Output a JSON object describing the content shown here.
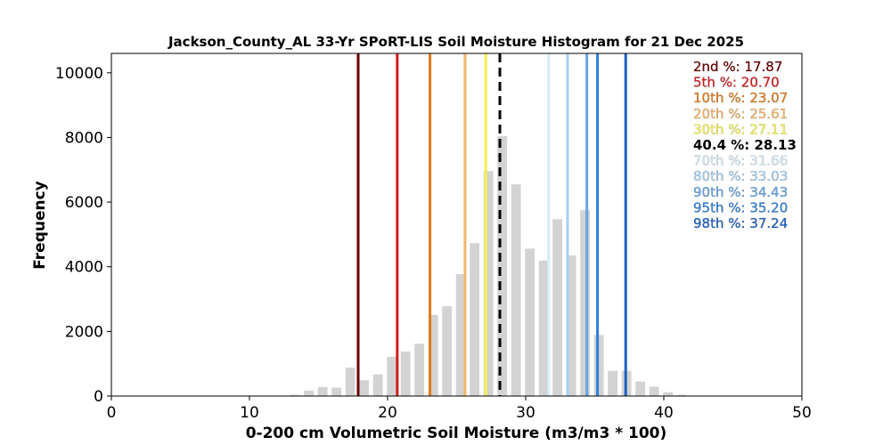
{
  "chart_data": {
    "type": "bar",
    "title": "Jackson_County_AL 33-Yr SPoRT-LIS Soil Moisture Histogram for 21 Dec 2025",
    "xlabel": "0-200 cm Volumetric Soil Moisture (m3/m3 * 100)",
    "ylabel": "Frequency",
    "xlim": [
      0,
      50
    ],
    "ylim": [
      0,
      10600
    ],
    "xticks": [
      "0",
      "10",
      "20",
      "30",
      "40",
      "50"
    ],
    "yticks": [
      "0",
      "2000",
      "4000",
      "6000",
      "8000",
      "10000"
    ],
    "bin_width": 1,
    "bar_color": "#d3d3d3",
    "bins": [
      {
        "x": 13.3,
        "y": 40
      },
      {
        "x": 14.3,
        "y": 170
      },
      {
        "x": 15.3,
        "y": 280
      },
      {
        "x": 16.3,
        "y": 260
      },
      {
        "x": 17.3,
        "y": 880
      },
      {
        "x": 18.3,
        "y": 490
      },
      {
        "x": 19.3,
        "y": 670
      },
      {
        "x": 20.3,
        "y": 1210
      },
      {
        "x": 21.3,
        "y": 1380
      },
      {
        "x": 22.3,
        "y": 1620
      },
      {
        "x": 23.3,
        "y": 2510
      },
      {
        "x": 24.3,
        "y": 2780
      },
      {
        "x": 25.3,
        "y": 3770
      },
      {
        "x": 26.3,
        "y": 4730
      },
      {
        "x": 27.3,
        "y": 6960
      },
      {
        "x": 28.3,
        "y": 8040
      },
      {
        "x": 29.3,
        "y": 6550
      },
      {
        "x": 30.3,
        "y": 4560
      },
      {
        "x": 31.3,
        "y": 4190
      },
      {
        "x": 32.3,
        "y": 5470
      },
      {
        "x": 33.3,
        "y": 4350
      },
      {
        "x": 34.3,
        "y": 5750
      },
      {
        "x": 35.3,
        "y": 1890
      },
      {
        "x": 36.3,
        "y": 780
      },
      {
        "x": 37.3,
        "y": 780
      },
      {
        "x": 38.3,
        "y": 450
      },
      {
        "x": 39.3,
        "y": 290
      },
      {
        "x": 40.3,
        "y": 120
      },
      {
        "x": 41.3,
        "y": 40
      }
    ],
    "percentile_lines": [
      {
        "label": "2nd %: 17.87",
        "value": 17.87,
        "color": "#6b0000",
        "dashed": false,
        "bold": false
      },
      {
        "label": "5th %: 20.70",
        "value": 20.7,
        "color": "#d41c1c",
        "dashed": false,
        "bold": false
      },
      {
        "label": "10th %: 23.07",
        "value": 23.07,
        "color": "#e07b1b",
        "dashed": false,
        "bold": false
      },
      {
        "label": "20th %: 25.61",
        "value": 25.61,
        "color": "#f5b66a",
        "dashed": false,
        "bold": false
      },
      {
        "label": "30th %: 27.11",
        "value": 27.11,
        "color": "#f5f04f",
        "dashed": false,
        "bold": false
      },
      {
        "label": "40.4 %: 28.13",
        "value": 28.13,
        "color": "#000000",
        "dashed": true,
        "bold": true
      },
      {
        "label": "70th %: 31.66",
        "value": 31.66,
        "color": "#d6ecf8",
        "dashed": false,
        "bold": false
      },
      {
        "label": "80th %: 33.03",
        "value": 33.03,
        "color": "#a7d0f0",
        "dashed": false,
        "bold": false
      },
      {
        "label": "90th %: 34.43",
        "value": 34.43,
        "color": "#64a5e6",
        "dashed": false,
        "bold": false
      },
      {
        "label": "95th %: 35.20",
        "value": 35.2,
        "color": "#2f80dc",
        "dashed": false,
        "bold": false
      },
      {
        "label": "98th %: 37.24",
        "value": 37.24,
        "color": "#1c5fc2",
        "dashed": false,
        "bold": false
      }
    ],
    "legend_placement": "top-right"
  }
}
